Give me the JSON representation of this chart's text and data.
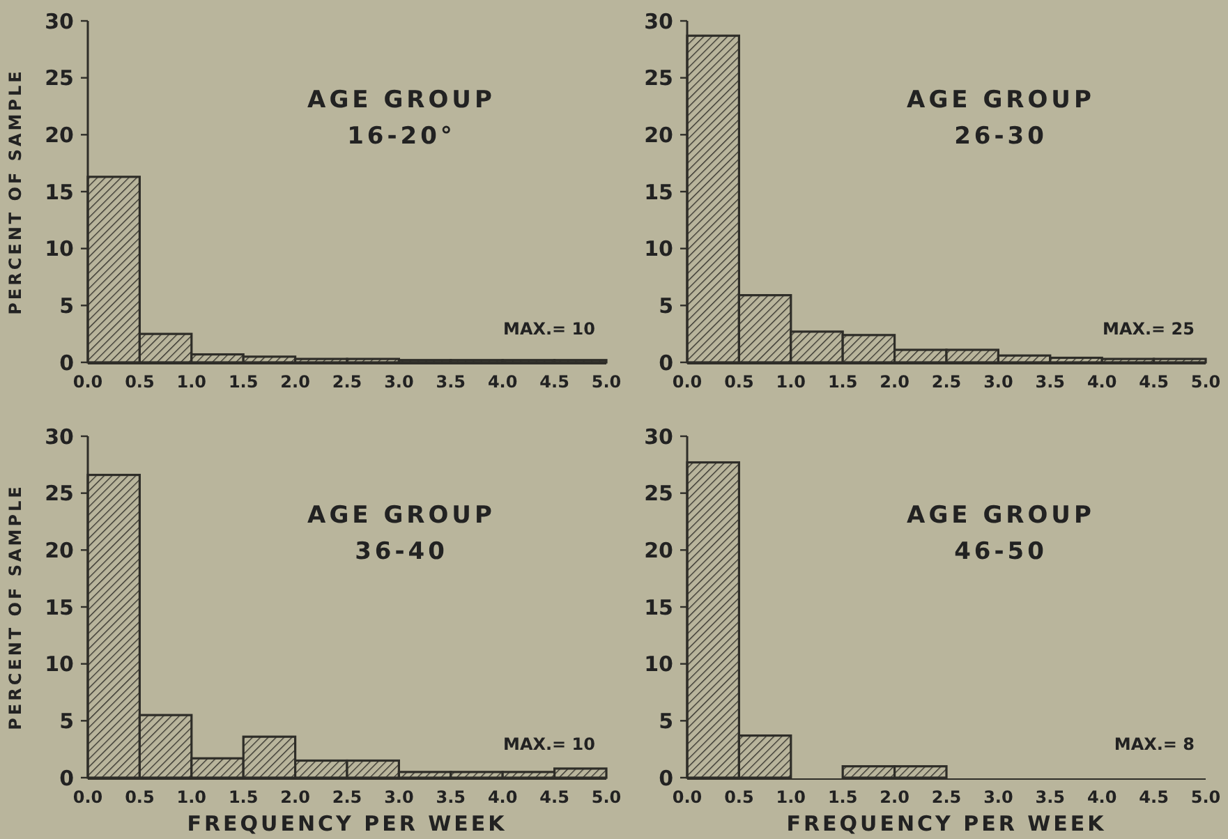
{
  "chart_data": [
    {
      "type": "histogram",
      "title": "AGE GROUP",
      "subtitle": "16-20°",
      "ylabel": "PERCENT OF SAMPLE",
      "annotations": [
        "MAX.= 10"
      ],
      "bins": [
        0,
        0.5,
        1,
        1.5,
        2,
        2.5,
        3,
        3.5,
        4,
        4.5,
        5
      ],
      "values": [
        16.3,
        2.5,
        0.7,
        0.5,
        0.3,
        0.3,
        0.2,
        0.2,
        0.2,
        0.2
      ],
      "color": "#2e2d28",
      "xlim": [
        0,
        5
      ],
      "ylim": [
        0,
        30
      ],
      "xticks": [
        {
          "value": 0,
          "label": "0.0"
        },
        {
          "value": 0.5,
          "label": "0.5"
        },
        {
          "value": 1,
          "label": "1.0"
        },
        {
          "value": 1.5,
          "label": "1.5"
        },
        {
          "value": 2,
          "label": "2.0"
        },
        {
          "value": 2.5,
          "label": "2.5"
        },
        {
          "value": 3,
          "label": "3.0"
        },
        {
          "value": 3.5,
          "label": "3.5"
        },
        {
          "value": 4,
          "label": "4.0"
        },
        {
          "value": 4.5,
          "label": "4.5"
        },
        {
          "value": 5,
          "label": "5.0"
        }
      ],
      "yticks": [
        0,
        5,
        10,
        15,
        20,
        25,
        30
      ]
    },
    {
      "type": "histogram",
      "title": "AGE GROUP",
      "subtitle": "26-30",
      "annotations": [
        "MAX.= 25"
      ],
      "bins": [
        0,
        0.5,
        1,
        1.5,
        2,
        2.5,
        3,
        3.5,
        4,
        4.5,
        5
      ],
      "values": [
        28.7,
        5.9,
        2.7,
        2.4,
        1.1,
        1.1,
        0.6,
        0.4,
        0.3,
        0.3
      ],
      "color": "#2e2d28",
      "xlim": [
        0,
        5
      ],
      "ylim": [
        0,
        30
      ],
      "xticks": [
        {
          "value": 0,
          "label": "0.0"
        },
        {
          "value": 0.5,
          "label": "0.5"
        },
        {
          "value": 1,
          "label": "1.0"
        },
        {
          "value": 1.5,
          "label": "1.5"
        },
        {
          "value": 2,
          "label": "2.0"
        },
        {
          "value": 2.5,
          "label": "2.5"
        },
        {
          "value": 3,
          "label": "3.0"
        },
        {
          "value": 3.5,
          "label": "3.5"
        },
        {
          "value": 4,
          "label": "4.0"
        },
        {
          "value": 4.5,
          "label": "4.5"
        },
        {
          "value": 5,
          "label": "5.0"
        }
      ],
      "yticks": [
        0,
        5,
        10,
        15,
        20,
        25,
        30
      ]
    },
    {
      "type": "histogram",
      "title": "AGE GROUP",
      "subtitle": "36-40",
      "ylabel": "PERCENT OF SAMPLE",
      "xlabel": "FREQUENCY PER WEEK",
      "annotations": [
        "MAX.= 10"
      ],
      "bins": [
        0,
        0.5,
        1,
        1.5,
        2,
        2.5,
        3,
        3.5,
        4,
        4.5,
        5
      ],
      "values": [
        26.6,
        5.5,
        1.7,
        3.6,
        1.5,
        1.5,
        0.5,
        0.5,
        0.5,
        0.8
      ],
      "color": "#2e2d28",
      "xlim": [
        0,
        5
      ],
      "ylim": [
        0,
        30
      ],
      "xticks": [
        {
          "value": 0,
          "label": "0.0"
        },
        {
          "value": 0.5,
          "label": "0.5"
        },
        {
          "value": 1,
          "label": "1.0"
        },
        {
          "value": 1.5,
          "label": "1.5"
        },
        {
          "value": 2,
          "label": "2.0"
        },
        {
          "value": 2.5,
          "label": "2.5"
        },
        {
          "value": 3,
          "label": "3.0"
        },
        {
          "value": 3.5,
          "label": "3.5"
        },
        {
          "value": 4,
          "label": "4.0"
        },
        {
          "value": 4.5,
          "label": "4.5"
        },
        {
          "value": 5,
          "label": "5.0"
        }
      ],
      "yticks": [
        0,
        5,
        10,
        15,
        20,
        25,
        30
      ]
    },
    {
      "type": "histogram",
      "title": "AGE GROUP",
      "subtitle": "46-50",
      "xlabel": "FREQUENCY PER WEEK",
      "annotations": [
        "MAX.= 8"
      ],
      "bins": [
        0,
        0.5,
        1,
        1.5,
        2,
        2.5,
        3,
        3.5,
        4,
        4.5,
        5
      ],
      "values": [
        27.7,
        3.7,
        0,
        1.0,
        1.0,
        0,
        0,
        0,
        0,
        0
      ],
      "color": "#2e2d28",
      "xlim": [
        0,
        5
      ],
      "ylim": [
        0,
        30
      ],
      "xticks": [
        {
          "value": 0,
          "label": "0.0"
        },
        {
          "value": 0.5,
          "label": "0.5"
        },
        {
          "value": 1,
          "label": "1.0"
        },
        {
          "value": 1.5,
          "label": "1.5"
        },
        {
          "value": 2,
          "label": "2.0"
        },
        {
          "value": 2.5,
          "label": "2.5"
        },
        {
          "value": 3,
          "label": "3.0"
        },
        {
          "value": 3.5,
          "label": "3.5"
        },
        {
          "value": 4,
          "label": "4.0"
        },
        {
          "value": 4.5,
          "label": "4.5"
        },
        {
          "value": 5,
          "label": "5.0"
        }
      ],
      "yticks": [
        0,
        5,
        10,
        15,
        20,
        25,
        30
      ]
    }
  ]
}
